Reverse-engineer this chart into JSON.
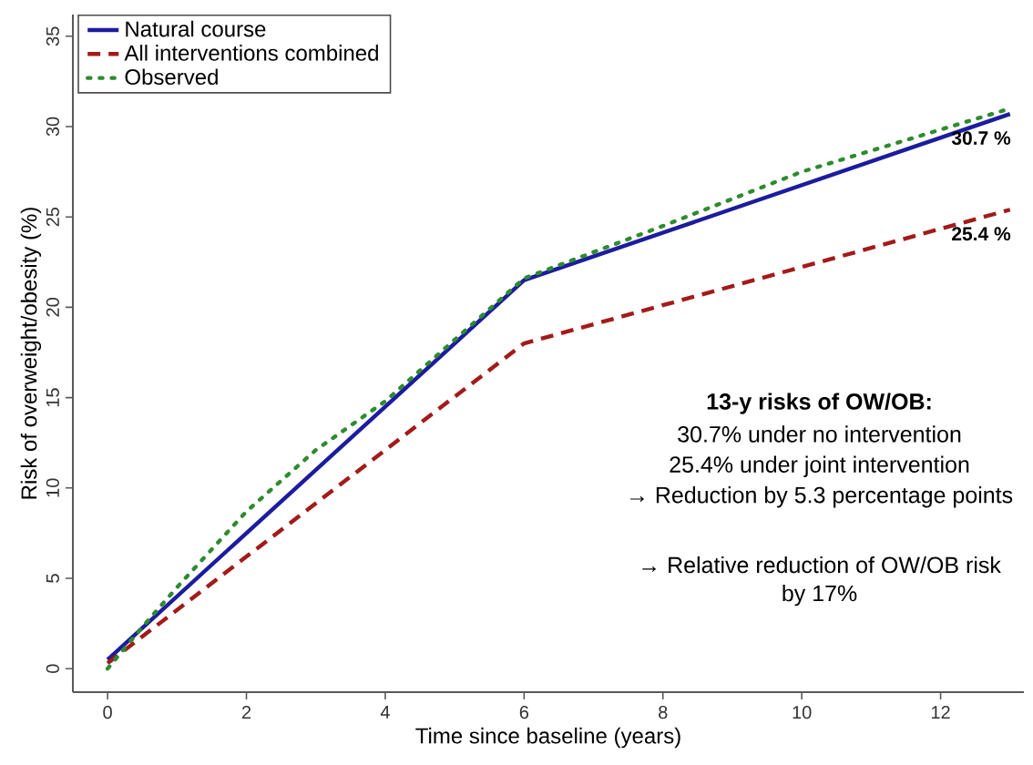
{
  "chart_data": {
    "type": "line",
    "xlabel": "Time since baseline (years)",
    "ylabel": "Risk of overweight/obesity (%)",
    "xlim": [
      -0.5,
      13.2
    ],
    "ylim": [
      -1.3,
      36.2
    ],
    "xticks": [
      0,
      2,
      4,
      6,
      8,
      10,
      12
    ],
    "yticks": [
      0,
      5,
      10,
      15,
      20,
      25,
      30,
      35
    ],
    "grid": false,
    "legend": "top left",
    "series": [
      {
        "name": "Natural course",
        "color": "#1c1c9e",
        "line_style": "solid",
        "x": [
          0,
          6,
          13
        ],
        "values": [
          0.5,
          21.5,
          30.7
        ]
      },
      {
        "name": "All interventions combined",
        "color": "#a31a1a",
        "line_style": "dashed",
        "x": [
          0,
          6,
          13
        ],
        "values": [
          0.3,
          18.0,
          25.4
        ]
      },
      {
        "name": "Observed",
        "color": "#2e8b2e",
        "line_style": "dotted",
        "x": [
          0,
          0.5,
          1,
          2,
          3,
          4,
          5,
          6,
          8,
          10,
          13
        ],
        "values": [
          0,
          2.3,
          4.5,
          8.7,
          12.1,
          14.8,
          18.2,
          21.6,
          24.5,
          27.5,
          31.0
        ]
      }
    ],
    "annotations": [
      {
        "text": "30.7 %",
        "x": 13,
        "y": 30.7
      },
      {
        "text": "25.4 %",
        "x": 13,
        "y": 25.4
      },
      "13-y risks of OW/OB:",
      "30.7% under no intervention",
      "25.4% under joint intervention",
      "→ Reduction by 5.3 percentage points",
      "→ Relative reduction of OW/OB risk",
      "by 17%"
    ]
  }
}
